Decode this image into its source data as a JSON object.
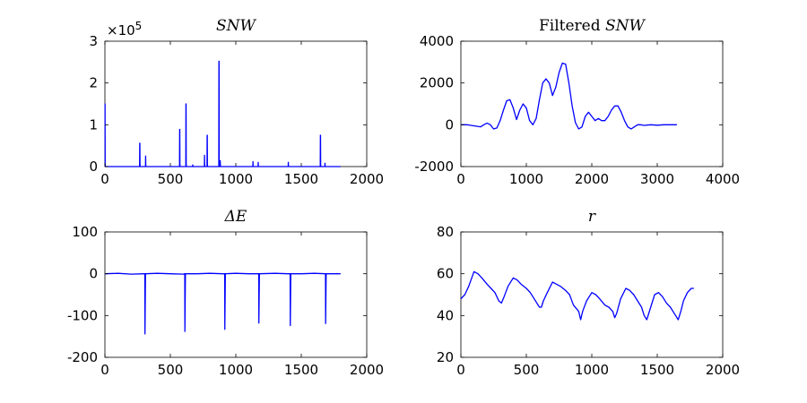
{
  "chart_data": [
    {
      "id": "snw",
      "type": "line",
      "title": {
        "prefix": "",
        "italic": "SNW"
      },
      "xlim": [
        0,
        2000
      ],
      "ylim": [
        0,
        3
      ],
      "xticks": [
        0,
        500,
        1000,
        1500,
        2000
      ],
      "yticks": [
        0,
        1,
        2,
        3
      ],
      "y_exponent": "×10",
      "y_exponent_power": "5",
      "series": [
        {
          "color": "#0000ff",
          "x": [
            0,
            1,
            2,
            3,
            4,
            5,
            265,
            266,
            267,
            268,
            269,
            270,
            310,
            311,
            312,
            313,
            570,
            571,
            572,
            573,
            574,
            575,
            618,
            619,
            620,
            621,
            622,
            623,
            670,
            671,
            672,
            673,
            760,
            761,
            762,
            763,
            780,
            781,
            782,
            783,
            784,
            785,
            870,
            871,
            872,
            873,
            874,
            875,
            880,
            881,
            882,
            883,
            1130,
            1131,
            1132,
            1133,
            1170,
            1171,
            1172,
            1173,
            1400,
            1401,
            1402,
            1403,
            1645,
            1646,
            1647,
            1648,
            1649,
            1650,
            1680,
            1681,
            1682,
            1683,
            1800
          ],
          "y": [
            1.5,
            1.5,
            0.05,
            0.02,
            0.01,
            0.0,
            0.0,
            0.56,
            0.56,
            0.05,
            0.01,
            0.0,
            0.0,
            0.25,
            0.05,
            0.0,
            0.0,
            0.89,
            0.89,
            0.05,
            0.01,
            0.0,
            0.0,
            1.5,
            1.5,
            0.05,
            0.01,
            0.0,
            0.0,
            0.04,
            0.02,
            0.0,
            0.0,
            0.27,
            0.05,
            0.0,
            0.0,
            0.75,
            0.75,
            0.05,
            0.01,
            0.0,
            0.0,
            2.52,
            2.52,
            0.05,
            0.01,
            0.0,
            0.0,
            0.14,
            0.03,
            0.0,
            0.0,
            0.12,
            0.02,
            0.0,
            0.0,
            0.1,
            0.02,
            0.0,
            0.0,
            0.1,
            0.02,
            0.0,
            0.0,
            0.75,
            0.75,
            0.05,
            0.01,
            0.0,
            0.0,
            0.08,
            0.02,
            0.0,
            0.0
          ]
        }
      ]
    },
    {
      "id": "filtered-snw",
      "type": "line",
      "title": {
        "prefix": "Filtered ",
        "italic": "SNW"
      },
      "xlim": [
        0,
        4000
      ],
      "ylim": [
        -2000,
        4000
      ],
      "xticks": [
        0,
        1000,
        2000,
        3000,
        4000
      ],
      "yticks": [
        -2000,
        0,
        2000,
        4000
      ],
      "series": [
        {
          "color": "#0000ff",
          "x": [
            0,
            100,
            200,
            300,
            350,
            400,
            450,
            500,
            550,
            600,
            650,
            700,
            750,
            800,
            850,
            900,
            950,
            1000,
            1050,
            1100,
            1150,
            1200,
            1250,
            1300,
            1350,
            1400,
            1450,
            1500,
            1550,
            1600,
            1650,
            1700,
            1750,
            1800,
            1850,
            1900,
            1950,
            2000,
            2050,
            2100,
            2150,
            2200,
            2250,
            2300,
            2350,
            2400,
            2450,
            2500,
            2550,
            2600,
            2650,
            2700,
            2750,
            2800,
            2900,
            3000,
            3100,
            3200,
            3300
          ],
          "y": [
            0,
            0,
            -50,
            -100,
            0,
            80,
            0,
            -200,
            -150,
            200,
            700,
            1150,
            1200,
            800,
            250,
            700,
            1000,
            800,
            200,
            0,
            300,
            1200,
            2000,
            2200,
            2000,
            1400,
            1800,
            2500,
            2950,
            2900,
            2000,
            900,
            100,
            -200,
            -100,
            400,
            600,
            400,
            200,
            300,
            200,
            200,
            400,
            700,
            900,
            900,
            600,
            200,
            -100,
            -200,
            -100,
            0,
            0,
            -30,
            0,
            -20,
            0,
            0,
            0
          ]
        }
      ]
    },
    {
      "id": "delta-e",
      "type": "line",
      "title": {
        "prefix": "",
        "italic": "ΔE"
      },
      "xlim": [
        0,
        2000
      ],
      "ylim": [
        -200,
        100
      ],
      "xticks": [
        0,
        500,
        1000,
        1500,
        2000
      ],
      "yticks": [
        -200,
        -100,
        0,
        100
      ],
      "series": [
        {
          "color": "#0000ff",
          "x": [
            0,
            100,
            200,
            300,
            305,
            306,
            310,
            400,
            500,
            600,
            610,
            611,
            615,
            700,
            800,
            900,
            915,
            916,
            920,
            1000,
            1100,
            1170,
            1175,
            1176,
            1180,
            1300,
            1400,
            1415,
            1416,
            1420,
            1500,
            1600,
            1685,
            1686,
            1690,
            1800
          ],
          "y": [
            0,
            1,
            -1,
            0,
            0,
            -144,
            0,
            1,
            0,
            -1,
            0,
            -138,
            0,
            0,
            1,
            0,
            0,
            -133,
            0,
            1,
            0,
            0,
            0,
            -118,
            0,
            1,
            0,
            0,
            -124,
            0,
            0,
            1,
            0,
            -119,
            0,
            0
          ]
        }
      ]
    },
    {
      "id": "r",
      "type": "line",
      "title": {
        "prefix": "",
        "italic": "r"
      },
      "xlim": [
        0,
        2000
      ],
      "ylim": [
        20,
        80
      ],
      "xticks": [
        0,
        500,
        1000,
        1500,
        2000
      ],
      "yticks": [
        20,
        40,
        60,
        80
      ],
      "series": [
        {
          "color": "#0000ff",
          "x": [
            0,
            30,
            60,
            100,
            130,
            160,
            200,
            230,
            260,
            290,
            310,
            330,
            360,
            400,
            430,
            460,
            500,
            530,
            560,
            600,
            615,
            630,
            660,
            700,
            730,
            760,
            800,
            830,
            860,
            900,
            915,
            930,
            960,
            1000,
            1030,
            1060,
            1100,
            1130,
            1160,
            1175,
            1190,
            1220,
            1260,
            1290,
            1320,
            1350,
            1380,
            1400,
            1420,
            1450,
            1480,
            1510,
            1540,
            1570,
            1600,
            1640,
            1660,
            1680,
            1700,
            1730,
            1760,
            1780
          ],
          "y": [
            48,
            50,
            54,
            61,
            60,
            58,
            55,
            53,
            51,
            47,
            46,
            49,
            54,
            58,
            57,
            55,
            53,
            51,
            48,
            44,
            44,
            47,
            51,
            56,
            55,
            54,
            52,
            50,
            45,
            42,
            38,
            42,
            47,
            51,
            50,
            48,
            45,
            44,
            42,
            39,
            41,
            48,
            53,
            52,
            50,
            47,
            44,
            40,
            38,
            44,
            50,
            51,
            49,
            46,
            44,
            40,
            38,
            42,
            47,
            51,
            53,
            53
          ]
        }
      ]
    }
  ]
}
